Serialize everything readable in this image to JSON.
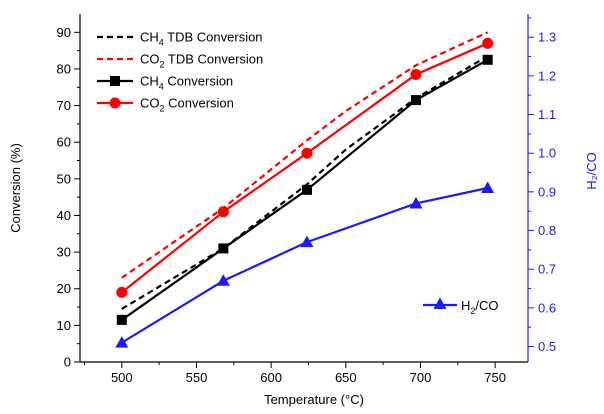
{
  "chart_data": {
    "type": "line",
    "xlabel": "Temperature (°C)",
    "ylabel": "Conversion (%)",
    "y2label": "H₂/CO",
    "xlim": [
      472,
      772
    ],
    "ylim": [
      0,
      95
    ],
    "y2lim": [
      0.46,
      1.36
    ],
    "x_ticks": [
      500,
      550,
      600,
      650,
      700,
      750
    ],
    "y_ticks": [
      0,
      10,
      20,
      30,
      40,
      50,
      60,
      70,
      80,
      90
    ],
    "y2_ticks": [
      0.5,
      0.6,
      0.7,
      0.8,
      0.9,
      1.0,
      1.1,
      1.2,
      1.3
    ],
    "y2_tick_labels": [
      "0.5",
      "0.6",
      "0.7",
      "0.8",
      "0.9",
      "1.0",
      "1.1",
      "1.2",
      "1.3"
    ],
    "series": [
      {
        "name": "CH₄ TDB Conversion",
        "axis": "left",
        "color": "#000000",
        "line": "dashed",
        "marker": "none",
        "x": [
          500,
          568,
          624,
          650,
          697,
          745
        ],
        "y": [
          14.5,
          31.0,
          48.5,
          58.0,
          72.0,
          83.5
        ]
      },
      {
        "name": "CO₂ TDB Conversion",
        "axis": "left",
        "color": "#ff0000",
        "line": "dashed",
        "marker": "none",
        "x": [
          500,
          568,
          624,
          650,
          697,
          745
        ],
        "y": [
          23.0,
          42.0,
          60.5,
          68.5,
          81.0,
          90.0
        ]
      },
      {
        "name": "CH₄ Conversion",
        "axis": "left",
        "color": "#000000",
        "line": "solid",
        "marker": "square",
        "x": [
          500,
          568,
          624,
          697,
          745
        ],
        "y": [
          11.5,
          31.0,
          47.0,
          71.5,
          82.5
        ]
      },
      {
        "name": "CO₂ Conversion",
        "axis": "left",
        "color": "#ff0000",
        "line": "solid",
        "marker": "circle",
        "x": [
          500,
          568,
          624,
          697,
          745
        ],
        "y": [
          19.0,
          41.0,
          57.0,
          78.5,
          87.0
        ]
      },
      {
        "name": "H₂/CO",
        "axis": "right",
        "color": "#1a1aff",
        "line": "solid",
        "marker": "triangle",
        "x": [
          500,
          568,
          624,
          697,
          745
        ],
        "y": [
          0.51,
          0.67,
          0.77,
          0.87,
          0.91
        ]
      }
    ],
    "legend": {
      "placement": "top-left",
      "entries": [
        {
          "sub_prefix": "CH",
          "sub": "4",
          "rest": " TDB Conversion"
        },
        {
          "sub_prefix": "CO",
          "sub": "2",
          "rest": " TDB Conversion"
        },
        {
          "sub_prefix": "CH",
          "sub": "4",
          "rest": " Conversion"
        },
        {
          "sub_prefix": "CO",
          "sub": "2",
          "rest": " Conversion"
        }
      ],
      "h2co_entry": {
        "sub_prefix": "H",
        "sub": "2",
        "rest": "/CO",
        "placement": "bottom-right"
      }
    }
  }
}
